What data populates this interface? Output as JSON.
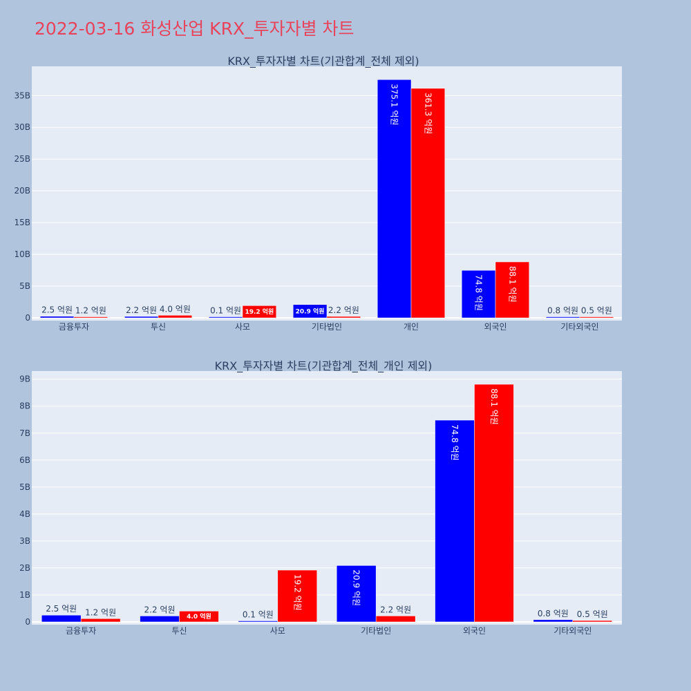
{
  "page": {
    "title": "2022-03-16 화성산업 KRX_투자자별 차트"
  },
  "colors": {
    "background": "#b0c4de",
    "plot_bg": "#e5ecf6",
    "title": "#e8435a",
    "series_a": "#0000ff",
    "series_b": "#ff0000",
    "text": "#2a3f5f",
    "grid": "#ffffff"
  },
  "chart_data": [
    {
      "type": "bar",
      "title": "KRX_투자자별 차트(기관합계_전체 제외)",
      "categories": [
        "금융투자",
        "투신",
        "사모",
        "기타법인",
        "개인",
        "외국인",
        "기타외국인"
      ],
      "series": [
        {
          "color": "#0000ff",
          "values": [
            0.25,
            0.22,
            0.01,
            2.09,
            37.51,
            7.48,
            0.08
          ],
          "labels": [
            "2.5 억원",
            "2.2 억원",
            "0.1 억원",
            "20.9 억원",
            "375.1 억원",
            "74.8 억원",
            "0.8 억원"
          ]
        },
        {
          "color": "#ff0000",
          "values": [
            0.12,
            0.4,
            1.92,
            0.22,
            36.13,
            8.81,
            0.05
          ],
          "labels": [
            "1.2 억원",
            "4.0 억원",
            "19.2 억원",
            "2.2 억원",
            "361.3 억원",
            "88.1 억원",
            "0.5 억원"
          ]
        }
      ],
      "ylim": [
        0,
        39.6
      ],
      "yticks": [
        0,
        5,
        10,
        15,
        20,
        25,
        30,
        35
      ],
      "ytick_labels": [
        "0",
        "5B",
        "10B",
        "15B",
        "20B",
        "25B",
        "30B",
        "35B"
      ],
      "grid": true,
      "xlabel": "",
      "ylabel": ""
    },
    {
      "type": "bar",
      "title": "KRX_투자자별 차트(기관합계_전체_개인 제외)",
      "categories": [
        "금융투자",
        "투신",
        "사모",
        "기타법인",
        "외국인",
        "기타외국인"
      ],
      "series": [
        {
          "color": "#0000ff",
          "values": [
            0.25,
            0.22,
            0.01,
            2.09,
            7.48,
            0.08
          ],
          "labels": [
            "2.5 억원",
            "2.2 억원",
            "0.1 억원",
            "20.9 억원",
            "74.8 억원",
            "0.8 억원"
          ]
        },
        {
          "color": "#ff0000",
          "values": [
            0.12,
            0.4,
            1.92,
            0.22,
            8.81,
            0.05
          ],
          "labels": [
            "1.2 억원",
            "4.0 억원",
            "19.2 억원",
            "2.2 억원",
            "88.1 억원",
            "0.5 억원"
          ]
        }
      ],
      "ylim": [
        0,
        9.3
      ],
      "yticks": [
        0,
        1,
        2,
        3,
        4,
        5,
        6,
        7,
        8,
        9
      ],
      "ytick_labels": [
        "0",
        "1B",
        "2B",
        "3B",
        "4B",
        "5B",
        "6B",
        "7B",
        "8B",
        "9B"
      ],
      "grid": true,
      "xlabel": "",
      "ylabel": ""
    }
  ]
}
